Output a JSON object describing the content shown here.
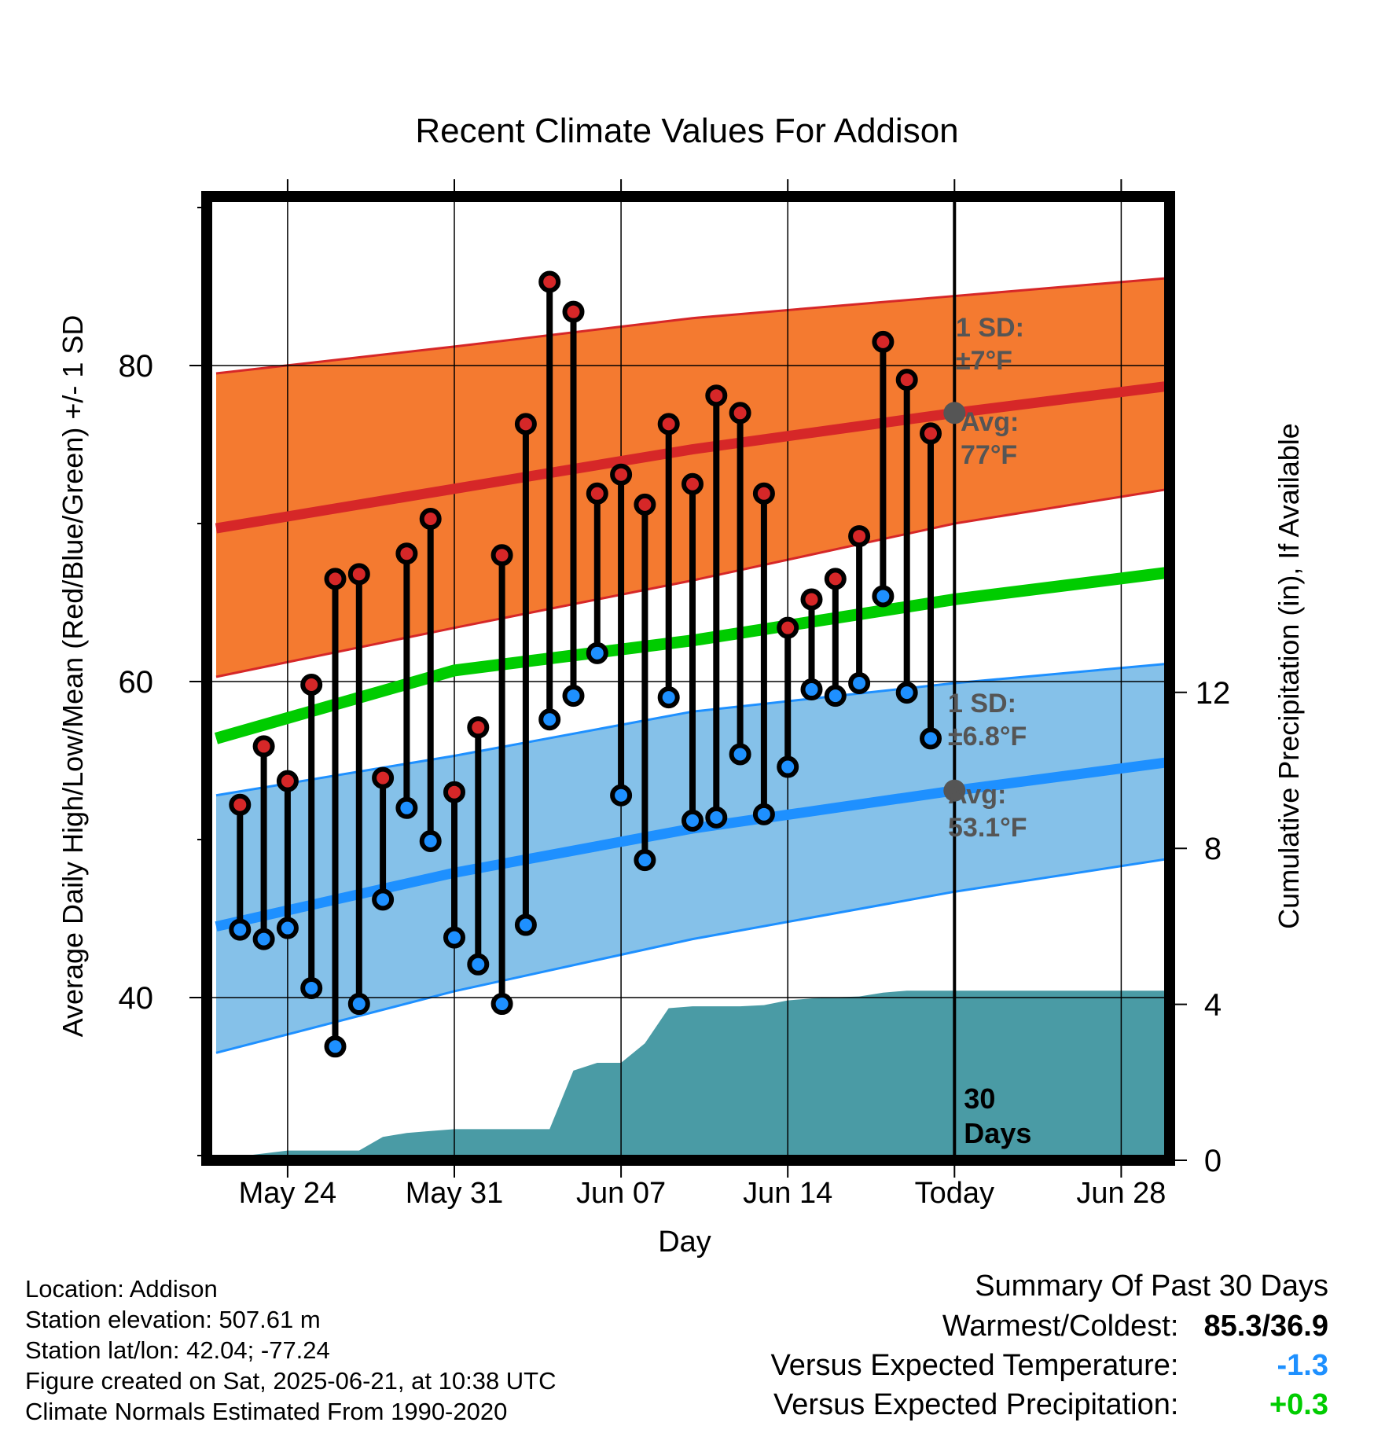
{
  "chart_data": {
    "type": "line",
    "title": "Recent Climate Values For Addison",
    "xlabel": "Day",
    "ylabel": "Average Daily High/Low/Mean (Red/Blue/Green) +/- 1 SD",
    "y2label": "Cumulative Precipitation (in), If Available",
    "ylim": [
      29.5,
      91
    ],
    "y2lim": [
      0,
      23
    ],
    "yticks": [
      40,
      60,
      80
    ],
    "y2ticks": [
      0,
      4,
      8,
      12
    ],
    "xticks": [
      {
        "day": 3,
        "label": "May 24"
      },
      {
        "day": 10,
        "label": "May 31"
      },
      {
        "day": 17,
        "label": "Jun 07"
      },
      {
        "day": 24,
        "label": "Jun 14"
      },
      {
        "day": 31,
        "label": "Today"
      },
      {
        "day": 38,
        "label": "Jun 28"
      }
    ],
    "grid": true,
    "days_label": "30\nDays",
    "colors": {
      "high": "#d62728",
      "low": "#1e90ff",
      "mean": "#00cc00",
      "high_band": "#f47a30",
      "low_band": "#85c1e9",
      "precip": "#4a9ba5",
      "marker_today": "#555555"
    },
    "normals": {
      "day": [
        0,
        10,
        20,
        31,
        40.5
      ],
      "high_mean": [
        69.7,
        72.2,
        74.7,
        77,
        78.8
      ],
      "high_upper": [
        79.5,
        81.2,
        83,
        84.4,
        85.6
      ],
      "high_lower": [
        60.3,
        63.4,
        66.4,
        70,
        72.3
      ],
      "low_mean": [
        44.5,
        47.9,
        50.7,
        53.1,
        55
      ],
      "low_upper": [
        52.8,
        55.3,
        58.1,
        59.9,
        61.2
      ],
      "low_lower": [
        36.5,
        40.4,
        43.7,
        46.7,
        48.9
      ],
      "mean": [
        56.4,
        60.7,
        62.6,
        65.2,
        67
      ]
    },
    "series": [
      {
        "name": "High",
        "day": [
          1,
          2,
          3,
          4,
          5,
          6,
          7,
          8,
          9,
          10,
          11,
          12,
          13,
          14,
          15,
          16,
          17,
          18,
          19,
          20,
          21,
          22,
          23,
          24,
          25,
          26,
          27,
          28,
          29,
          30
        ],
        "values": [
          52.2,
          55.9,
          53.7,
          59.8,
          66.5,
          66.8,
          53.9,
          68.1,
          70.3,
          53.0,
          57.1,
          68.0,
          76.3,
          85.3,
          83.4,
          71.9,
          73.1,
          71.2,
          76.3,
          72.5,
          78.1,
          77.0,
          71.9,
          63.4,
          65.2,
          66.5,
          69.2,
          81.5,
          79.1,
          75.7
        ]
      },
      {
        "name": "Low",
        "day": [
          1,
          2,
          3,
          4,
          5,
          6,
          7,
          8,
          9,
          10,
          11,
          12,
          13,
          14,
          15,
          16,
          17,
          18,
          19,
          20,
          21,
          22,
          23,
          24,
          25,
          26,
          27,
          28,
          29,
          30
        ],
        "values": [
          44.3,
          43.7,
          44.4,
          40.6,
          36.9,
          39.6,
          46.2,
          52.0,
          49.9,
          43.8,
          42.1,
          39.6,
          44.6,
          57.6,
          59.1,
          61.8,
          52.8,
          48.7,
          59.0,
          51.2,
          51.4,
          55.4,
          51.6,
          54.6,
          59.5,
          59.1,
          59.9,
          65.4,
          59.3,
          56.4
        ]
      }
    ],
    "precip": {
      "day": [
        0,
        1,
        3,
        5,
        6,
        7,
        8,
        9,
        10,
        12,
        13,
        14,
        15,
        16,
        16.5,
        17,
        18,
        19,
        20,
        21,
        22,
        23,
        24,
        25,
        26,
        27,
        28,
        29,
        30,
        31,
        40.5
      ],
      "values": [
        0,
        0.1,
        0.25,
        0.25,
        0.25,
        0.6,
        0.7,
        0.75,
        0.8,
        0.8,
        0.8,
        0.8,
        2.3,
        2.5,
        2.5,
        2.5,
        3.0,
        3.9,
        3.95,
        3.95,
        3.95,
        3.98,
        4.1,
        4.15,
        4.18,
        4.2,
        4.3,
        4.35,
        4.35,
        4.35,
        4.35
      ]
    },
    "annotations": {
      "high_sd": "1 SD:",
      "high_sd_val": "±7°F",
      "high_avg": "Avg:",
      "high_avg_val": "77°F",
      "low_sd": "1 SD:",
      "low_sd_val": "±6.8°F",
      "low_avg": "Avg:",
      "low_avg_val": "53.1°F",
      "today_high": 77,
      "today_low": 53.1
    }
  },
  "info": {
    "location": "Location: Addison",
    "elevation": "Station elevation: 507.61 m",
    "latlon": "Station lat/lon: 42.04; -77.24",
    "created": "Figure created on Sat, 2025-06-21, at 10:38 UTC",
    "normals": "Climate Normals Estimated From 1990-2020"
  },
  "summary": {
    "title": "Summary Of Past 30 Days",
    "warmest_label": "Warmest/Coldest:",
    "warmest_value": "85.3/36.9",
    "temp_label": "Versus Expected Temperature:",
    "temp_value": "-1.3",
    "temp_color": "#1e90ff",
    "precip_label": "Versus Expected Precipitation:",
    "precip_value": "+0.3",
    "precip_color": "#00cc00"
  }
}
